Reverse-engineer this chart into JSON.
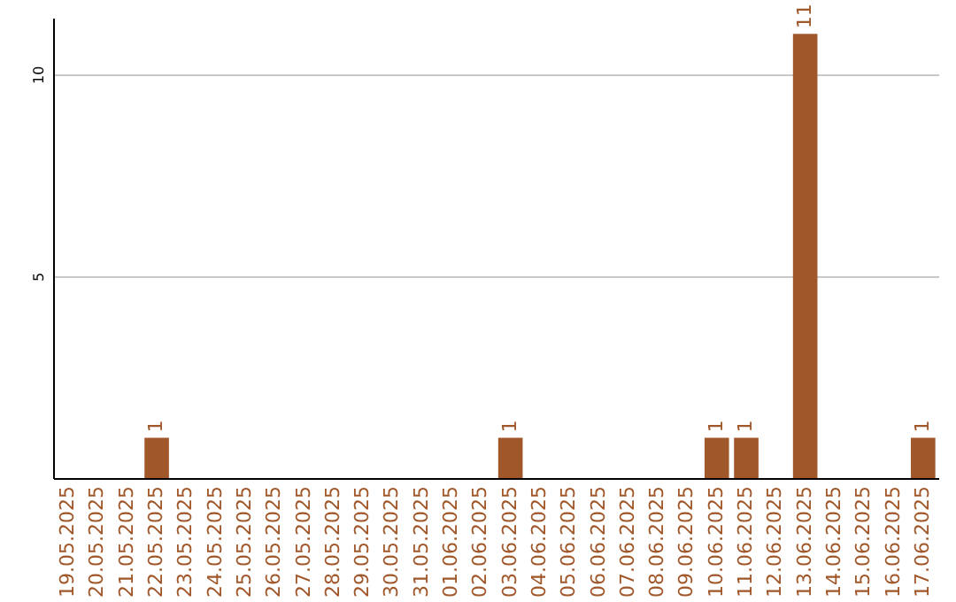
{
  "chart_data": {
    "type": "bar",
    "categories": [
      "19.05.2025",
      "20.05.2025",
      "21.05.2025",
      "22.05.2025",
      "23.05.2025",
      "24.05.2025",
      "25.05.2025",
      "26.05.2025",
      "27.05.2025",
      "28.05.2025",
      "29.05.2025",
      "30.05.2025",
      "31.05.2025",
      "01.06.2025",
      "02.06.2025",
      "03.06.2025",
      "04.06.2025",
      "05.06.2025",
      "06.06.2025",
      "07.06.2025",
      "08.06.2025",
      "09.06.2025",
      "10.06.2025",
      "11.06.2025",
      "12.06.2025",
      "13.06.2025",
      "14.06.2025",
      "15.06.2025",
      "16.06.2025",
      "17.06.2025"
    ],
    "values": [
      null,
      null,
      null,
      1,
      null,
      null,
      null,
      null,
      null,
      null,
      null,
      null,
      null,
      null,
      null,
      1,
      null,
      null,
      null,
      null,
      null,
      null,
      1,
      1,
      null,
      11,
      null,
      null,
      null,
      1
    ],
    "color": "#a0572a",
    "ylim": [
      0,
      11.4
    ],
    "yticks": [
      5,
      10
    ],
    "grid": "y",
    "data_labels": true
  }
}
